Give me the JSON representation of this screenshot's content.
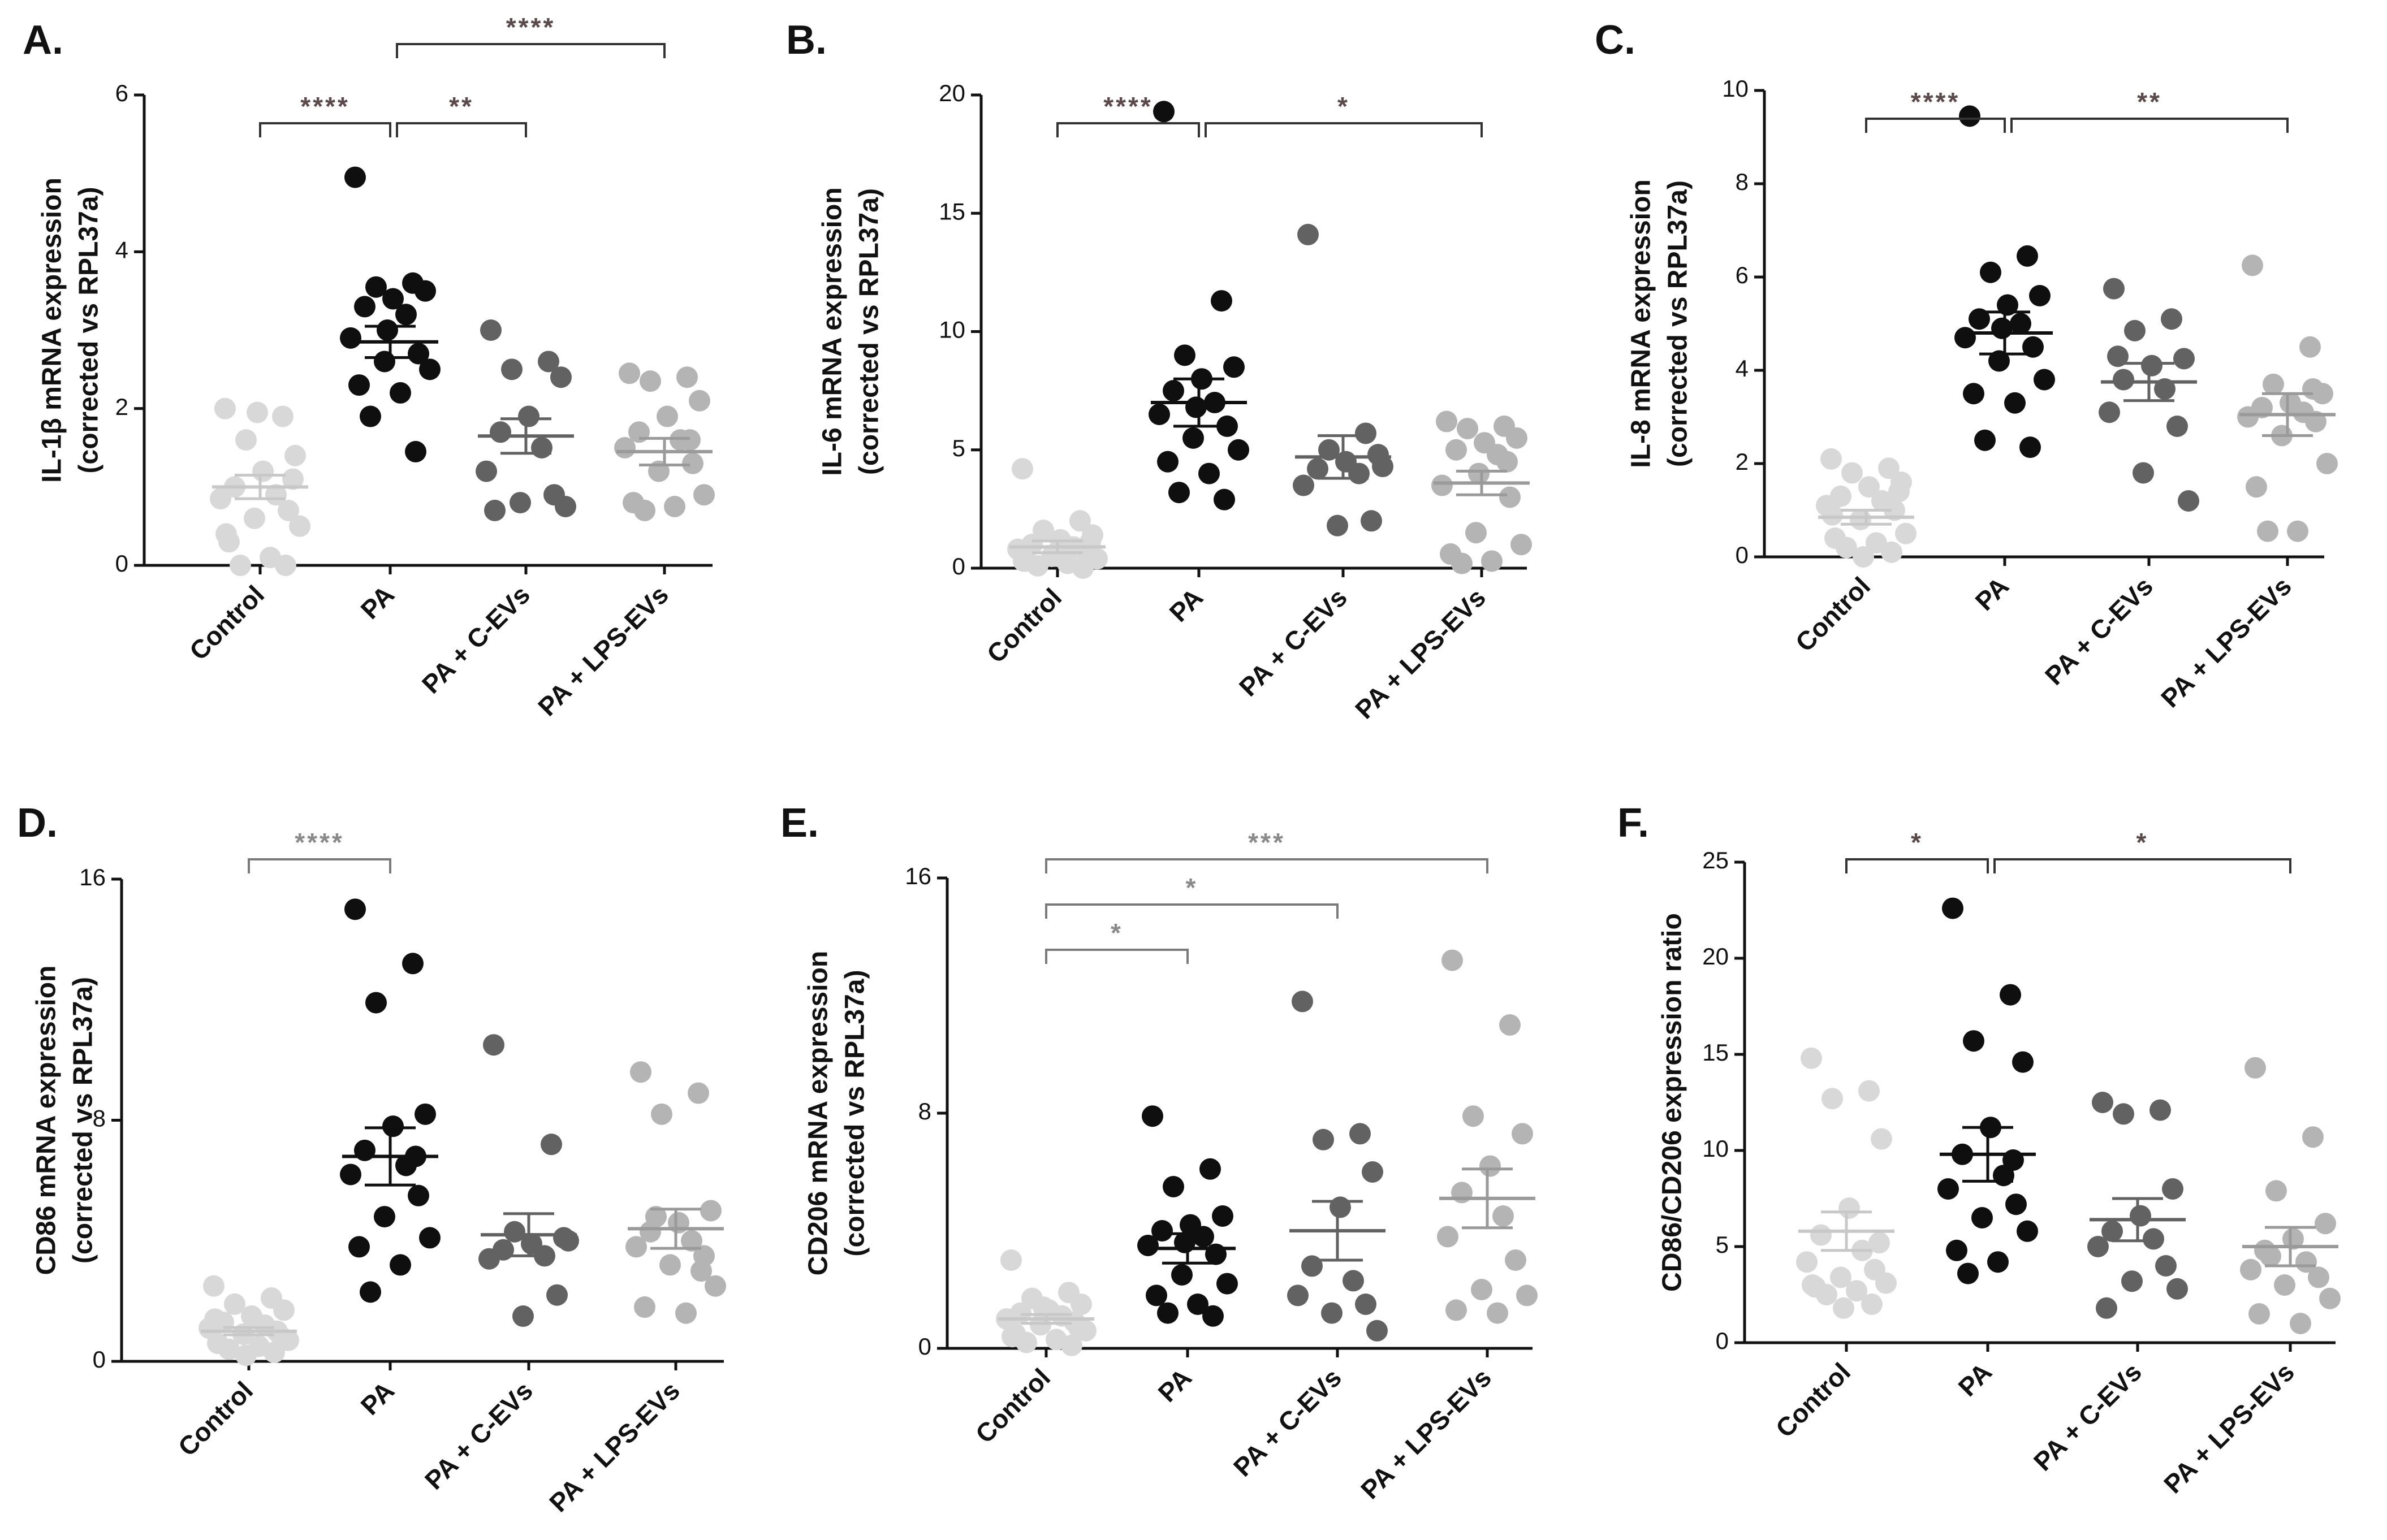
{
  "colors": {
    "control": "#d8d8d8",
    "pa": "#0f0f0f",
    "pa_cevs": "#626262",
    "pa_lpsevs": "#b4b4b4",
    "axis": "#111111",
    "star_default": "#5a4a4a",
    "star_gray": "#8a8a8a"
  },
  "chart_data": [
    {
      "panel": "A.",
      "type": "scatter",
      "ylabel": [
        "IL-1β mRNA expression",
        "(corrected vs RPL37a)"
      ],
      "categories": [
        "Control",
        "PA",
        "PA + C-EVs",
        "PA + LPS-EVs"
      ],
      "ylim": [
        0,
        6
      ],
      "yticks": [
        "0",
        "2",
        "4",
        "6"
      ],
      "series": [
        {
          "name": "Control",
          "values": [
            2.0,
            1.9,
            1.6,
            1.4,
            1.2,
            1.0,
            0.9,
            0.85,
            0.7,
            0.6,
            0.5,
            0.3,
            0.1,
            0.0,
            0.0,
            1.95,
            1.1,
            0.4
          ],
          "mean": 1.0,
          "sem": 0.15
        },
        {
          "name": "PA",
          "values": [
            4.95,
            3.6,
            3.55,
            3.5,
            3.4,
            3.3,
            3.2,
            2.9,
            2.7,
            2.6,
            2.5,
            2.3,
            2.2,
            1.9,
            1.45,
            3.0
          ],
          "mean": 2.85,
          "sem": 0.2
        },
        {
          "name": "PA + C-EVs",
          "values": [
            3.0,
            2.6,
            2.5,
            2.4,
            1.9,
            1.7,
            1.5,
            1.2,
            0.9,
            0.8,
            0.75,
            0.7
          ],
          "mean": 1.65,
          "sem": 0.22
        },
        {
          "name": "PA + LPS-EVs",
          "values": [
            2.45,
            2.4,
            2.35,
            2.1,
            1.9,
            1.7,
            1.6,
            1.5,
            1.3,
            1.2,
            0.9,
            0.8,
            0.75,
            0.7,
            1.6
          ],
          "mean": 1.45,
          "sem": 0.17
        }
      ],
      "significance": [
        {
          "from": 0,
          "to": 1,
          "label": "****",
          "level": 1
        },
        {
          "from": 1,
          "to": 2,
          "label": "**",
          "level": 1
        },
        {
          "from": 1,
          "to": 3,
          "label": "****",
          "level": 2
        }
      ]
    },
    {
      "panel": "B.",
      "type": "scatter",
      "ylabel": [
        "IL-6 mRNA expression",
        "(corrected vs RPL37a)"
      ],
      "categories": [
        "Control",
        "PA",
        "PA + C-EVs",
        "PA + LPS-EVs"
      ],
      "ylim": [
        0,
        20
      ],
      "yticks": [
        "0",
        "5",
        "10",
        "15",
        "20"
      ],
      "series": [
        {
          "name": "Control",
          "values": [
            4.2,
            2.0,
            1.6,
            1.4,
            1.2,
            1.0,
            0.9,
            0.8,
            0.7,
            0.5,
            0.4,
            0.3,
            0.2,
            0.1,
            0.0,
            0.6,
            1.1,
            0.3
          ],
          "mean": 0.9,
          "sem": 0.25
        },
        {
          "name": "PA",
          "values": [
            19.3,
            11.3,
            9.0,
            8.5,
            8.0,
            7.5,
            7.0,
            6.5,
            6.0,
            5.5,
            5.0,
            4.5,
            4.0,
            3.2,
            2.9,
            6.8
          ],
          "mean": 7.0,
          "sem": 1.0
        },
        {
          "name": "PA + C-EVs",
          "values": [
            14.1,
            5.7,
            5.0,
            4.8,
            4.5,
            4.2,
            4.0,
            3.5,
            2.0,
            1.8,
            4.3
          ],
          "mean": 4.7,
          "sem": 0.9
        },
        {
          "name": "PA + LPS-EVs",
          "values": [
            6.2,
            6.0,
            5.9,
            5.5,
            5.3,
            5.0,
            4.8,
            3.5,
            3.0,
            1.5,
            1.0,
            0.6,
            0.3,
            0.2,
            4.5,
            4.0
          ],
          "mean": 3.6,
          "sem": 0.5
        }
      ],
      "significance": [
        {
          "from": 0,
          "to": 1,
          "label": "****",
          "level": 1
        },
        {
          "from": 1,
          "to": 3,
          "label": "*",
          "level": 1
        }
      ]
    },
    {
      "panel": "C.",
      "type": "scatter",
      "ylabel": [
        "IL-8 mRNA expression",
        "(corrected vs RPL37a)"
      ],
      "categories": [
        "Control",
        "PA",
        "PA + C-EVs",
        "PA + LPS-EVs"
      ],
      "ylim": [
        0,
        10
      ],
      "yticks": [
        "0",
        "2",
        "4",
        "6",
        "8",
        "10"
      ],
      "series": [
        {
          "name": "Control",
          "values": [
            2.1,
            1.9,
            1.8,
            1.6,
            1.5,
            1.3,
            1.2,
            1.1,
            1.0,
            0.8,
            0.5,
            0.4,
            0.3,
            0.2,
            0.1,
            0.0,
            1.4,
            0.9
          ],
          "mean": 0.85,
          "sem": 0.15
        },
        {
          "name": "PA",
          "values": [
            9.45,
            6.45,
            6.1,
            5.6,
            5.4,
            5.1,
            5.0,
            4.7,
            4.5,
            4.2,
            3.8,
            3.5,
            3.3,
            2.5,
            2.35,
            4.9
          ],
          "mean": 4.8,
          "sem": 0.45
        },
        {
          "name": "PA + C-EVs",
          "values": [
            5.75,
            5.1,
            4.85,
            4.25,
            4.1,
            3.8,
            3.6,
            3.1,
            2.8,
            1.8,
            1.2,
            4.3
          ],
          "mean": 3.75,
          "sem": 0.4
        },
        {
          "name": "PA + LPS-EVs",
          "values": [
            6.25,
            4.5,
            3.7,
            3.5,
            3.3,
            3.2,
            3.1,
            3.0,
            2.9,
            2.6,
            2.0,
            1.5,
            0.55,
            0.55,
            3.6
          ],
          "mean": 3.05,
          "sem": 0.45
        }
      ],
      "significance": [
        {
          "from": 0,
          "to": 1,
          "label": "****",
          "level": 1
        },
        {
          "from": 1,
          "to": 3,
          "label": "**",
          "level": 1
        }
      ]
    },
    {
      "panel": "D.",
      "type": "scatter",
      "ylabel": [
        "CD86 mRNA expression",
        "(corrected vs RPL37a)"
      ],
      "categories": [
        "Control",
        "PA",
        "PA + C-EVs",
        "PA + LPS-EVs"
      ],
      "ylim": [
        0,
        16
      ],
      "yticks": [
        "0",
        "8",
        "16"
      ],
      "series": [
        {
          "name": "Control",
          "values": [
            2.5,
            2.1,
            1.9,
            1.7,
            1.5,
            1.3,
            1.2,
            1.1,
            1.0,
            0.9,
            0.7,
            0.6,
            0.5,
            0.4,
            0.3,
            0.2,
            0.8,
            1.4
          ],
          "mean": 1.0,
          "sem": 0.12
        },
        {
          "name": "PA",
          "values": [
            15.0,
            13.2,
            11.9,
            8.2,
            7.8,
            7.0,
            6.5,
            6.2,
            5.5,
            4.8,
            4.1,
            3.8,
            3.2,
            2.3,
            6.8
          ],
          "mean": 6.8,
          "sem": 0.95
        },
        {
          "name": "PA + C-EVs",
          "values": [
            10.5,
            7.2,
            4.3,
            4.1,
            3.9,
            3.7,
            3.5,
            3.4,
            2.2,
            1.5,
            4.0
          ],
          "mean": 4.2,
          "sem": 0.7
        },
        {
          "name": "PA + LPS-EVs",
          "values": [
            9.6,
            8.9,
            8.2,
            5.0,
            4.6,
            4.3,
            4.0,
            3.8,
            3.5,
            3.2,
            2.5,
            1.8,
            1.6,
            4.8,
            3.0
          ],
          "mean": 4.4,
          "sem": 0.65
        }
      ],
      "significance": [
        {
          "from": 0,
          "to": 1,
          "label": "****",
          "level": 1
        }
      ]
    },
    {
      "panel": "E.",
      "type": "scatter",
      "ylabel": [
        "CD206 mRNA expression",
        "(corrected vs RPL37a)"
      ],
      "categories": [
        "Control",
        "PA",
        "PA + C-EVs",
        "PA + LPS-EVs"
      ],
      "ylim": [
        0,
        16
      ],
      "yticks": [
        "0",
        "8",
        "16"
      ],
      "series": [
        {
          "name": "Control",
          "values": [
            3.0,
            1.9,
            1.7,
            1.5,
            1.3,
            1.2,
            1.1,
            1.0,
            0.9,
            0.8,
            0.6,
            0.5,
            0.3,
            0.2,
            0.1,
            1.4,
            0.7,
            0.4
          ],
          "mean": 1.0,
          "sem": 0.15
        },
        {
          "name": "PA",
          "values": [
            7.9,
            6.1,
            5.5,
            4.5,
            4.2,
            4.0,
            3.8,
            3.5,
            3.2,
            2.5,
            2.2,
            1.8,
            1.5,
            1.2,
            1.1,
            3.6
          ],
          "mean": 3.4,
          "sem": 0.5
        },
        {
          "name": "PA + C-EVs",
          "values": [
            11.8,
            7.3,
            7.1,
            6.0,
            4.8,
            2.8,
            2.3,
            1.8,
            1.5,
            1.2,
            0.6
          ],
          "mean": 4.0,
          "sem": 1.0
        },
        {
          "name": "PA + LPS-EVs",
          "values": [
            13.2,
            11.0,
            7.9,
            7.3,
            6.2,
            5.3,
            4.5,
            3.8,
            3.0,
            2.0,
            1.8,
            1.3,
            1.2
          ],
          "mean": 5.1,
          "sem": 1.0
        }
      ],
      "significance": [
        {
          "from": 0,
          "to": 1,
          "label": "*",
          "level": 1
        },
        {
          "from": 0,
          "to": 2,
          "label": "*",
          "level": 2
        },
        {
          "from": 0,
          "to": 3,
          "label": "***",
          "level": 3
        }
      ]
    },
    {
      "panel": "F.",
      "type": "scatter",
      "ylabel": [
        "CD86/CD206 expression ratio"
      ],
      "categories": [
        "Control",
        "PA",
        "PA + C-EVs",
        "PA + LPS-EVs"
      ],
      "ylim": [
        0,
        25
      ],
      "yticks": [
        "0",
        "5",
        "10",
        "15",
        "20",
        "25"
      ],
      "series": [
        {
          "name": "Control",
          "values": [
            14.8,
            13.1,
            12.7,
            10.6,
            7.0,
            5.6,
            4.8,
            4.2,
            3.8,
            3.4,
            3.1,
            2.9,
            2.7,
            2.5,
            2.0,
            1.8,
            5.2,
            3.0
          ],
          "mean": 5.8,
          "sem": 1.0
        },
        {
          "name": "PA",
          "values": [
            22.6,
            18.1,
            15.7,
            14.6,
            11.2,
            9.8,
            8.7,
            8.0,
            7.2,
            6.5,
            5.8,
            4.8,
            4.2,
            3.6,
            9.5
          ],
          "mean": 9.8,
          "sem": 1.4
        },
        {
          "name": "PA + C-EVs",
          "values": [
            12.5,
            12.1,
            11.9,
            8.0,
            6.6,
            5.8,
            5.4,
            5.0,
            4.0,
            3.2,
            2.8,
            1.8
          ],
          "mean": 6.4,
          "sem": 1.1
        },
        {
          "name": "PA + LPS-EVs",
          "values": [
            14.3,
            10.7,
            7.9,
            6.2,
            5.4,
            4.8,
            4.2,
            3.8,
            3.4,
            3.0,
            2.3,
            1.5,
            1.0,
            4.5
          ],
          "mean": 5.0,
          "sem": 1.0
        }
      ],
      "significance": [
        {
          "from": 0,
          "to": 1,
          "label": "*",
          "level": 1
        },
        {
          "from": 1,
          "to": 3,
          "label": "*",
          "level": 1
        }
      ]
    }
  ]
}
